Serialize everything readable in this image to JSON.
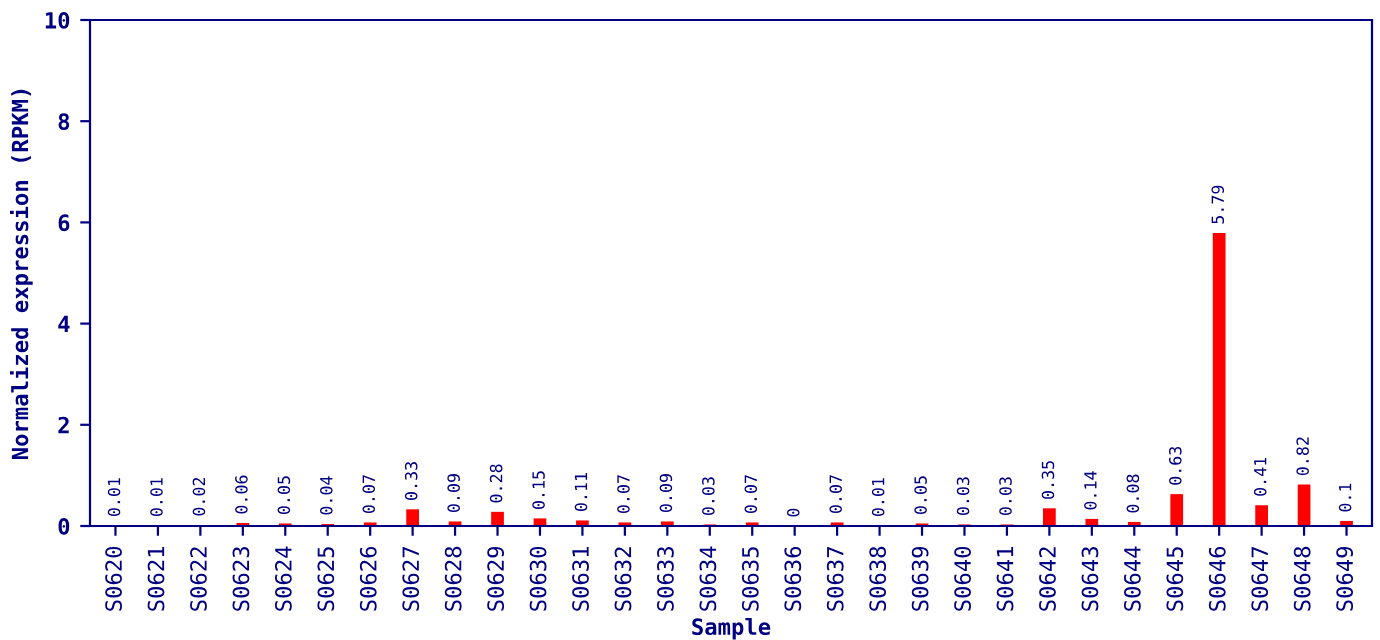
{
  "chart_data": {
    "type": "bar",
    "xlabel": "Sample",
    "ylabel": "Normalized expression (RPKM)",
    "categories": [
      "S0620",
      "S0621",
      "S0622",
      "S0623",
      "S0624",
      "S0625",
      "S0626",
      "S0627",
      "S0628",
      "S0629",
      "S0630",
      "S0631",
      "S0632",
      "S0633",
      "S0634",
      "S0635",
      "S0636",
      "S0637",
      "S0638",
      "S0639",
      "S0640",
      "S0641",
      "S0642",
      "S0643",
      "S0644",
      "S0645",
      "S0646",
      "S0647",
      "S0648",
      "S0649"
    ],
    "values": [
      0.01,
      0.01,
      0.02,
      0.06,
      0.05,
      0.04,
      0.07,
      0.33,
      0.09,
      0.28,
      0.15,
      0.11,
      0.07,
      0.09,
      0.03,
      0.07,
      0,
      0.07,
      0.01,
      0.05,
      0.03,
      0.03,
      0.35,
      0.14,
      0.08,
      0.63,
      5.79,
      0.41,
      0.82,
      0.1
    ],
    "color": "#ff0000",
    "data_labels": true,
    "ylim": [
      0,
      10
    ],
    "yticks": [
      0,
      2,
      4,
      6,
      8,
      10
    ],
    "grid": false
  }
}
